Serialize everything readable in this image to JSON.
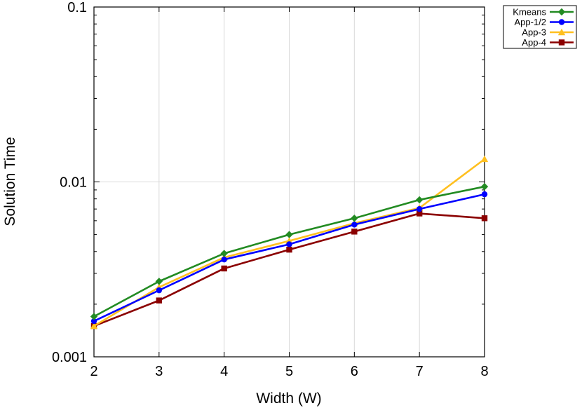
{
  "chart_data": {
    "type": "line",
    "title": "",
    "xlabel": "Width (W)",
    "ylabel": "Solution Time",
    "x": [
      2,
      3,
      4,
      5,
      6,
      7,
      8
    ],
    "xlim": [
      2,
      8
    ],
    "ylim": [
      0.001,
      0.1
    ],
    "yscale": "log",
    "x_tick_labels": [
      "2",
      "3",
      "4",
      "5",
      "6",
      "7",
      "8"
    ],
    "y_tick_labels": [
      "0.001",
      "0.01",
      "0.1"
    ],
    "grid": true,
    "legend_position": "top-right, outside plot",
    "series": [
      {
        "name": "Kmeans",
        "color": "#228b22",
        "marker": "diamond",
        "values": [
          0.0017,
          0.0027,
          0.0039,
          0.005,
          0.0062,
          0.0079,
          0.0094
        ]
      },
      {
        "name": "App-1/2",
        "color": "#0000ff",
        "marker": "circle",
        "values": [
          0.0016,
          0.0024,
          0.0036,
          0.0044,
          0.0057,
          0.007,
          0.0085
        ]
      },
      {
        "name": "App-3",
        "color": "#ffc020",
        "marker": "triangle",
        "values": [
          0.0015,
          0.0025,
          0.0037,
          0.0046,
          0.0058,
          0.0071,
          0.0135
        ]
      },
      {
        "name": "App-4",
        "color": "#8b0000",
        "marker": "square",
        "values": [
          0.0015,
          0.0021,
          0.0032,
          0.0041,
          0.0052,
          0.0066,
          0.0062
        ]
      }
    ]
  }
}
